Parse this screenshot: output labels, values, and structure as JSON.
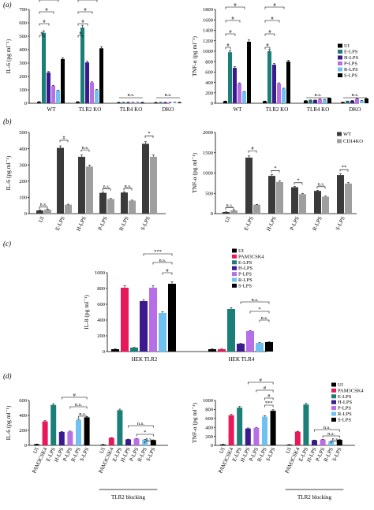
{
  "colors": {
    "UI": "#000000",
    "PAM3CSK4": "#e8195a",
    "E-LPS": "#1a7f78",
    "H-LPS": "#3b1a8f",
    "P-LPS": "#b86ee6",
    "R-LPS": "#6ec1f0",
    "S-LPS": "#000000",
    "WT": "#3a3a3a",
    "CD14KO": "#9e9e9e"
  },
  "panel_labels": [
    "(a)",
    "(b)",
    "(c)",
    "(d)"
  ],
  "group_notes": [
    "TLR2 blocking",
    "TLR2 blocking"
  ],
  "chart_data": [
    {
      "id": "a1",
      "type": "bar",
      "panel": "(a)",
      "ylabel": "IL-6 (pg ml⁻¹)",
      "ylim": [
        0,
        700
      ],
      "yticks": [
        0,
        100,
        200,
        300,
        400,
        500,
        600,
        700
      ],
      "groups": [
        "WT",
        "TLR2 KO",
        "TLR4 KO",
        "DKO"
      ],
      "series": [
        {
          "name": "UI",
          "values": [
            10,
            10,
            5,
            5
          ]
        },
        {
          "name": "E-LPS",
          "values": [
            525,
            565,
            5,
            5
          ]
        },
        {
          "name": "H-LPS",
          "values": [
            230,
            305,
            5,
            5
          ]
        },
        {
          "name": "P-LPS",
          "values": [
            130,
            155,
            5,
            5
          ]
        },
        {
          "name": "R-LPS",
          "values": [
            95,
            100,
            5,
            5
          ]
        },
        {
          "name": "S-LPS",
          "values": [
            330,
            410,
            5,
            5
          ]
        }
      ],
      "annotations": [
        "#",
        "#",
        "#",
        "#",
        "#",
        "#",
        "#",
        "#",
        "#",
        "#",
        "n.s.",
        "n.s."
      ]
    },
    {
      "id": "a2",
      "type": "bar",
      "panel": "(a)",
      "ylabel": "TNF-α (pg ml⁻¹)",
      "ylim": [
        0,
        1800
      ],
      "yticks": [
        0,
        200,
        400,
        600,
        800,
        1000,
        1200,
        1400,
        1600,
        1800
      ],
      "groups": [
        "WT",
        "TLR2 KO",
        "TLR4 KO",
        "DKO"
      ],
      "series": [
        {
          "name": "UI",
          "values": [
            40,
            40,
            50,
            20
          ]
        },
        {
          "name": "E-LPS",
          "values": [
            980,
            1000,
            60,
            40
          ]
        },
        {
          "name": "H-LPS",
          "values": [
            680,
            740,
            60,
            50
          ]
        },
        {
          "name": "P-LPS",
          "values": [
            380,
            380,
            80,
            90
          ]
        },
        {
          "name": "R-LPS",
          "values": [
            220,
            280,
            70,
            50
          ]
        },
        {
          "name": "S-LPS",
          "values": [
            1180,
            800,
            100,
            90
          ]
        }
      ],
      "legend": [
        "UI",
        "E-LPS",
        "H-LPS",
        "P-LPS",
        "R-LPS",
        "S-LPS"
      ],
      "annotations": [
        "#",
        "#",
        "#",
        "#",
        "#",
        "#",
        "#",
        "#",
        "#",
        "#",
        "#",
        "n.s.",
        "n.s."
      ]
    },
    {
      "id": "b1",
      "type": "bar",
      "panel": "(b)",
      "ylabel": "IL-6 (pg ml⁻¹)",
      "ylim": [
        0,
        500
      ],
      "yticks": [
        0,
        100,
        200,
        300,
        400,
        500
      ],
      "categories": [
        "UI",
        "E-LPS",
        "H-LPS",
        "P-LPS",
        "R-LPS",
        "S-LPS"
      ],
      "series": [
        {
          "name": "WT",
          "values": [
            20,
            405,
            350,
            128,
            130,
            430
          ]
        },
        {
          "name": "CD14KO",
          "values": [
            25,
            55,
            290,
            90,
            80,
            350
          ]
        }
      ],
      "annotations": [
        "n.s.",
        "#",
        "n.s.",
        "n.s.",
        "n.s.",
        "*"
      ]
    },
    {
      "id": "b2",
      "type": "bar",
      "panel": "(b)",
      "ylabel": "TNF-α (pg ml⁻¹)",
      "ylim": [
        0,
        2000
      ],
      "yticks": [
        0,
        500,
        1000,
        1500,
        2000
      ],
      "categories": [
        "UI",
        "E-LPS",
        "H-LPS",
        "P-LPS",
        "R-LPS",
        "S-LPS"
      ],
      "series": [
        {
          "name": "WT",
          "values": [
            40,
            1380,
            930,
            650,
            560,
            950
          ]
        },
        {
          "name": "CD14KO",
          "values": [
            80,
            220,
            780,
            480,
            420,
            740
          ]
        }
      ],
      "legend": [
        "WT",
        "CD14KO"
      ],
      "annotations": [
        "n.s.",
        "#",
        "*",
        "*",
        "n.s.",
        "**"
      ]
    },
    {
      "id": "c",
      "type": "bar",
      "panel": "(c)",
      "ylabel": "IL-8 (pg ml⁻¹)",
      "ylim": [
        0,
        1000
      ],
      "yticks": [
        0,
        200,
        400,
        600,
        800,
        1000
      ],
      "groups": [
        "HEK TLR2",
        "HEK TLR4"
      ],
      "series": [
        {
          "name": "UI",
          "values": [
            30,
            30
          ]
        },
        {
          "name": "PAM3CSK4",
          "values": [
            810,
            30
          ]
        },
        {
          "name": "E-LPS",
          "values": [
            50,
            540
          ]
        },
        {
          "name": "H-LPS",
          "values": [
            640,
            100
          ]
        },
        {
          "name": "P-LPS",
          "values": [
            810,
            260
          ]
        },
        {
          "name": "R-LPS",
          "values": [
            490,
            110
          ]
        },
        {
          "name": "S-LPS",
          "values": [
            860,
            120
          ]
        }
      ],
      "legend": [
        "UI",
        "PAM3CSK4",
        "E-LPS",
        "H-LPS",
        "P-LPS",
        "R-LPS",
        "S-LPS"
      ],
      "annotations": [
        "***",
        "n.s.",
        "#",
        "n.s.",
        "*",
        "n.s."
      ]
    },
    {
      "id": "d1",
      "type": "bar",
      "panel": "(d)",
      "ylabel": "IL-6 (pg ml⁻¹)",
      "ylim": [
        0,
        600
      ],
      "yticks": [
        0,
        200,
        400,
        600
      ],
      "categories": [
        "UI",
        "PAM3CSK4",
        "E-LPS",
        "H-LPS",
        "P-LPS",
        "R-LPS",
        "S-LPS",
        "UI",
        "PAM3CSK4",
        "E-LPS",
        "H-LPS",
        "P-LPS",
        "R-LPS",
        "S-LPS"
      ],
      "values": [
        15,
        320,
        540,
        180,
        185,
        340,
        375,
        10,
        100,
        470,
        80,
        90,
        75,
        70
      ],
      "bar_series": [
        "UI",
        "PAM3CSK4",
        "E-LPS",
        "H-LPS",
        "P-LPS",
        "R-LPS",
        "S-LPS",
        "UI",
        "PAM3CSK4",
        "E-LPS",
        "H-LPS",
        "P-LPS",
        "R-LPS",
        "S-LPS"
      ],
      "annotations": [
        "#",
        "n.s.",
        "n.s.",
        "n.s.",
        "*",
        "n.s."
      ]
    },
    {
      "id": "d2",
      "type": "bar",
      "panel": "(d)",
      "ylabel": "TNF-α (pg ml⁻¹)",
      "ylim": [
        0,
        1000
      ],
      "yticks": [
        0,
        200,
        400,
        600,
        800,
        1000
      ],
      "categories": [
        "UI",
        "PAM3CSK4",
        "E-LPS",
        "H-LPS",
        "P-LPS",
        "R-LPS",
        "S-LPS",
        "UI",
        "PAM3CSK4",
        "E-LPS",
        "H-LPS",
        "P-LPS",
        "R-LPS",
        "S-LPS"
      ],
      "values": [
        20,
        670,
        840,
        375,
        390,
        640,
        770,
        15,
        305,
        910,
        115,
        130,
        90,
        125
      ],
      "bar_series": [
        "UI",
        "PAM3CSK4",
        "E-LPS",
        "H-LPS",
        "P-LPS",
        "R-LPS",
        "S-LPS",
        "UI",
        "PAM3CSK4",
        "E-LPS",
        "H-LPS",
        "P-LPS",
        "R-LPS",
        "S-LPS"
      ],
      "legend": [
        "UI",
        "PAM3CSK4",
        "E-LPS",
        "H-LPS",
        "P-LPS",
        "R-LPS",
        "S-LPS"
      ],
      "annotations": [
        "#",
        "#",
        "#",
        "***",
        "n.s.",
        "n.s.",
        "n.s."
      ]
    }
  ]
}
